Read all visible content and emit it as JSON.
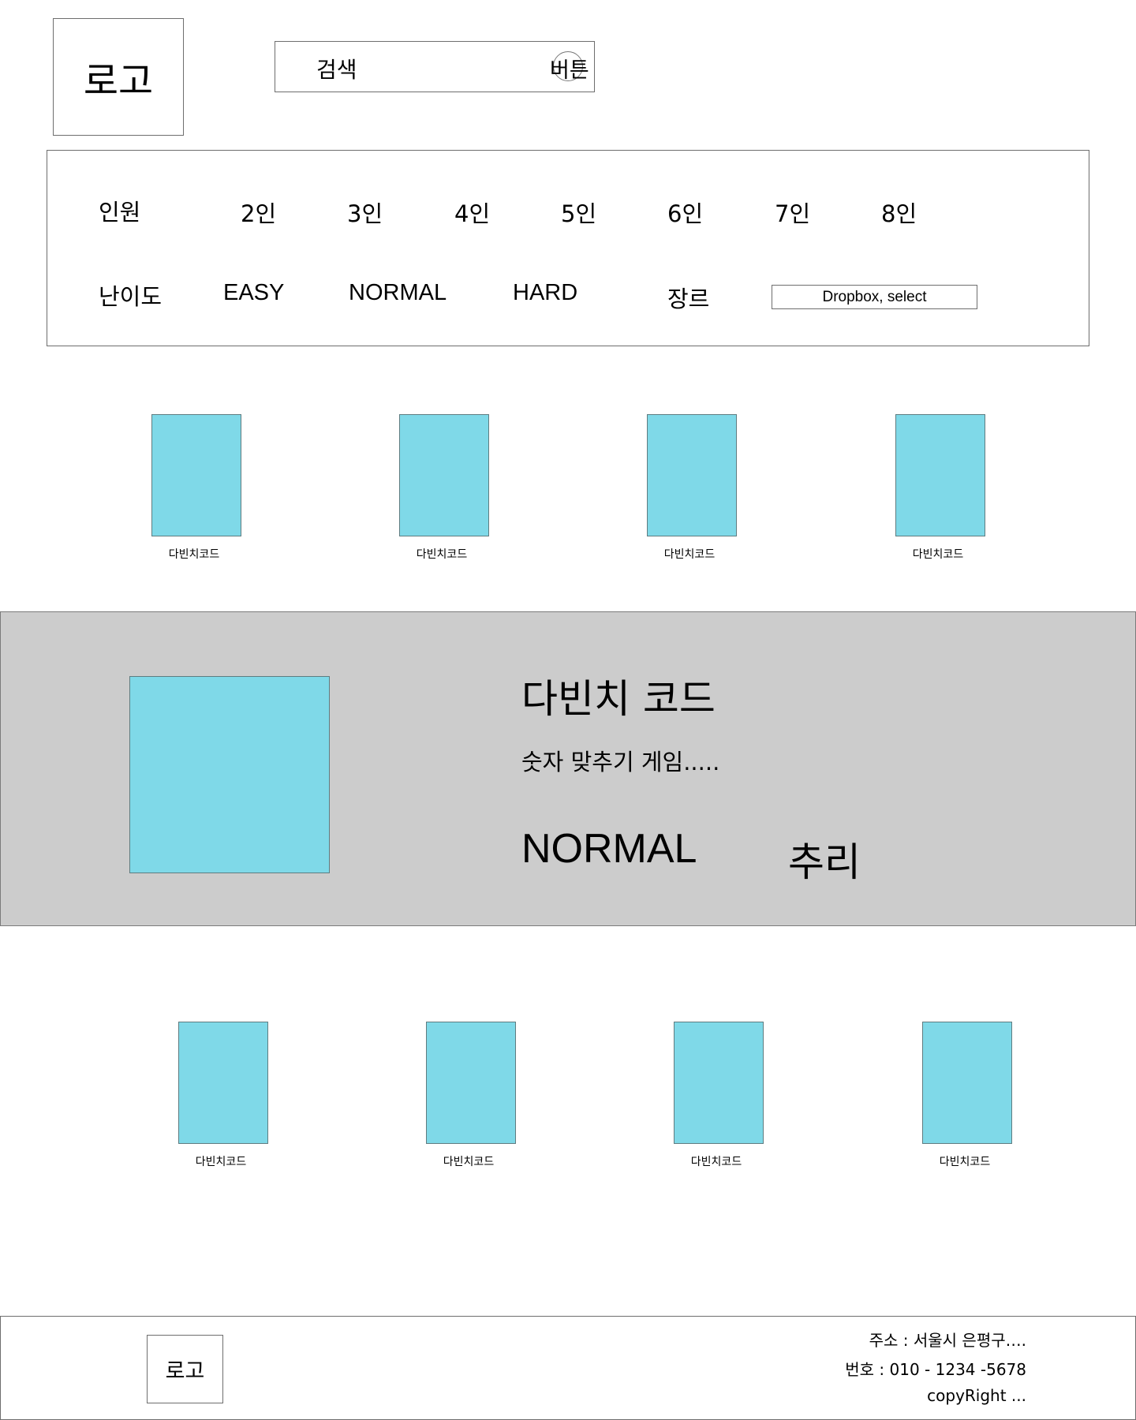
{
  "header": {
    "logo": "로고",
    "search": {
      "placeholder": "검색",
      "button_label": "버튼"
    }
  },
  "filters": {
    "players": {
      "label": "인원",
      "options": [
        "2인",
        "3인",
        "4인",
        "5인",
        "6인",
        "7인",
        "8인"
      ]
    },
    "difficulty": {
      "label": "난이도",
      "options": [
        "EASY",
        "NORMAL",
        "HARD"
      ]
    },
    "genre": {
      "label": "장르",
      "select_value": "Dropbox, select"
    }
  },
  "cards_top": [
    {
      "title": "다빈치코드"
    },
    {
      "title": "다빈치코드"
    },
    {
      "title": "다빈치코드"
    },
    {
      "title": "다빈치코드"
    }
  ],
  "featured": {
    "title": "다빈치 코드",
    "description": "숫자 맞추기 게임.....",
    "difficulty": "NORMAL",
    "genre": "추리"
  },
  "cards_bottom": [
    {
      "title": "다빈치코드"
    },
    {
      "title": "다빈치코드"
    },
    {
      "title": "다빈치코드"
    },
    {
      "title": "다빈치코드"
    }
  ],
  "footer": {
    "logo": "로고",
    "address": "주소 : 서울시 은평구….",
    "phone": "번호 : 010 - 1234 -5678",
    "copyright": "copyRight ..."
  },
  "colors": {
    "thumbnail": "#7fd9e8",
    "featured_bg": "#cccccc",
    "border": "#6e6e6e"
  }
}
